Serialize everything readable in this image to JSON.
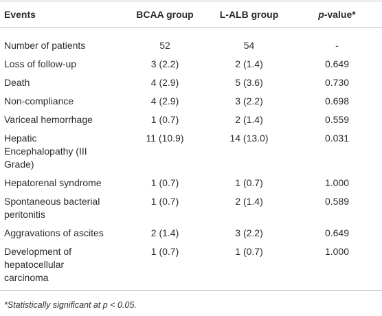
{
  "table": {
    "header": [
      "Events",
      "BCAA group",
      "L-ALB group",
      [
        "p",
        "-value*"
      ]
    ],
    "rows": [
      [
        [
          "Number of patients"
        ],
        "52",
        "54",
        "-"
      ],
      [
        [
          "Loss of follow-up"
        ],
        "3 (2.2)",
        "2 (1.4)",
        "0.649"
      ],
      [
        [
          "Death"
        ],
        "4 (2.9)",
        "5 (3.6)",
        "0.730"
      ],
      [
        [
          "Non-compliance"
        ],
        "4 (2.9)",
        "3 (2.2)",
        "0.698"
      ],
      [
        [
          "Variceal hemorrhage"
        ],
        "1 (0.7)",
        "2 (1.4)",
        "0.559"
      ],
      [
        [
          "Hepatic",
          "Encephalopathy (III",
          "Grade)"
        ],
        "11 (10.9)",
        "14 (13.0)",
        "0.031"
      ],
      [
        [
          "Hepatorenal syndrome"
        ],
        "1 (0.7)",
        "1 (0.7)",
        "1.000"
      ],
      [
        [
          "Spontaneous bacterial",
          "peritonitis"
        ],
        "1 (0.7)",
        "2 (1.4)",
        "0.589"
      ],
      [
        [
          "Aggravations of ascites"
        ],
        "2 (1.4)",
        "3 (2.2)",
        "0.649"
      ],
      [
        [
          "Development of",
          "hepatocellular",
          "carcinoma"
        ],
        "1 (0.7)",
        "1 (0.7)",
        "1.000"
      ]
    ],
    "footnote": "*Statistically significant at p < 0.05."
  }
}
